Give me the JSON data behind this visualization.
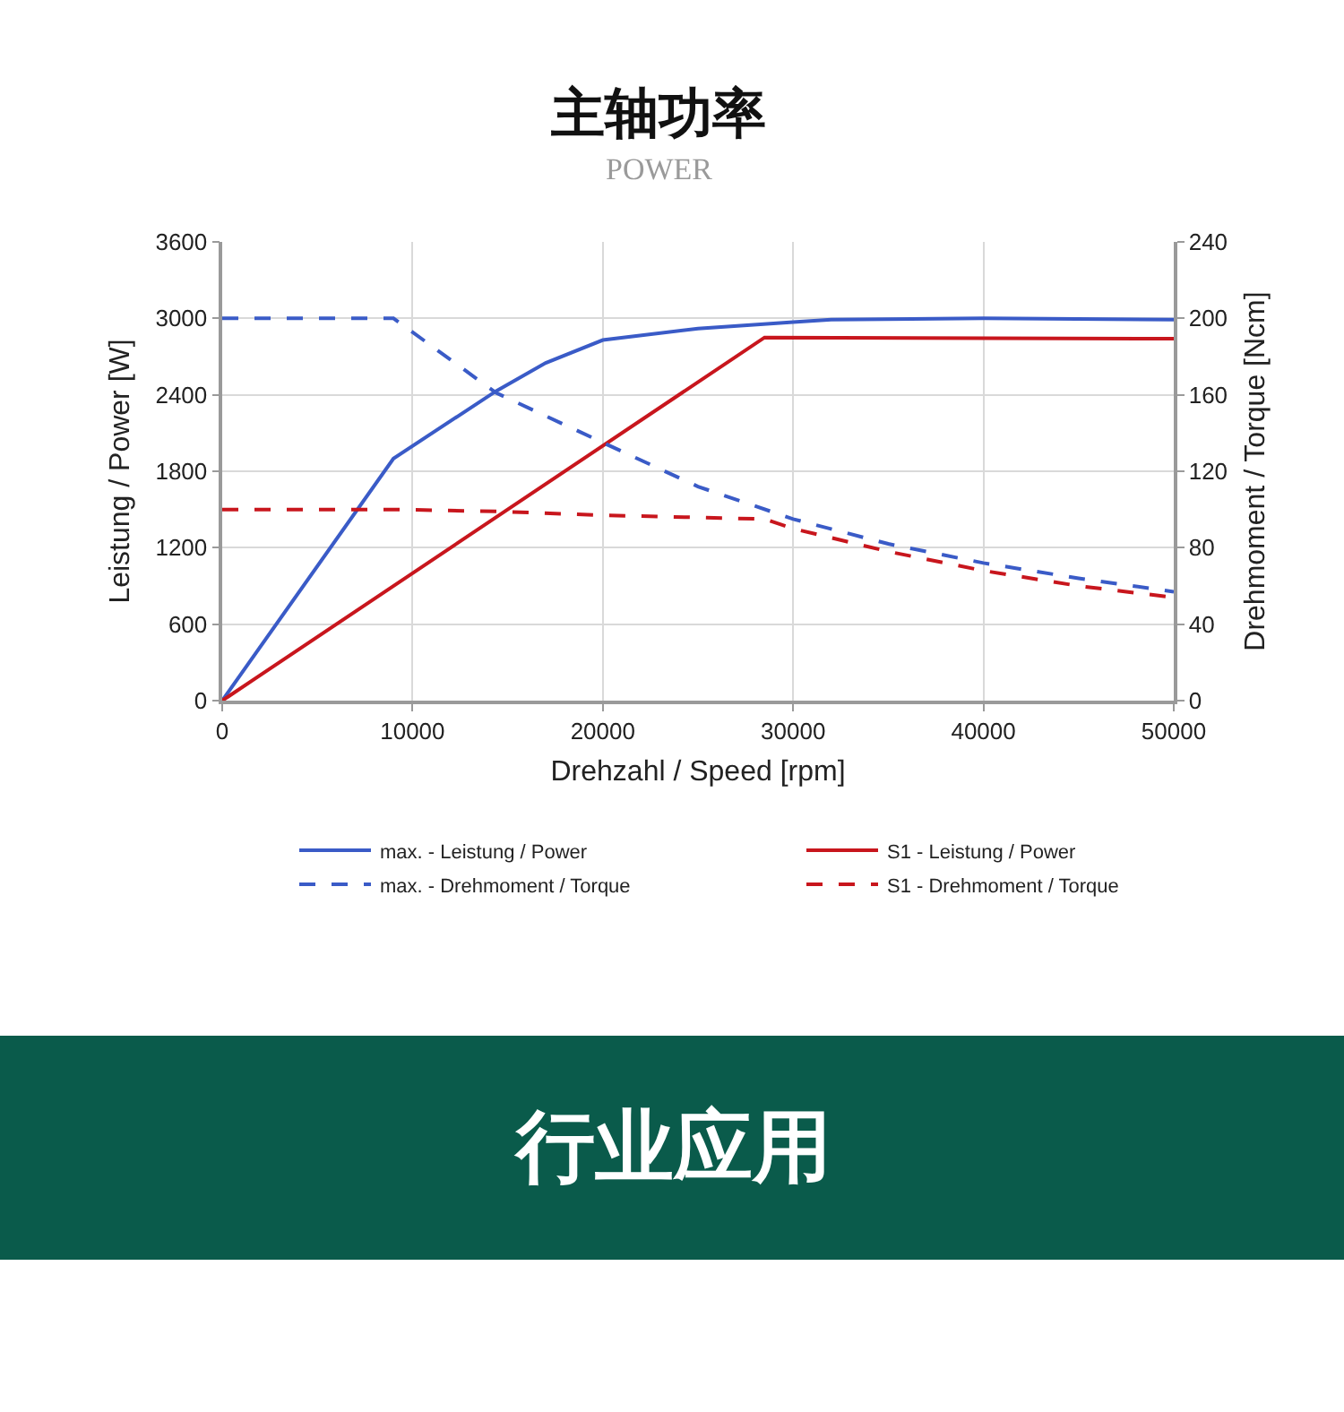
{
  "chart_data": {
    "type": "line",
    "title": "主轴功率",
    "subtitle": "POWER",
    "xlabel": "Drehzahl / Speed [rpm]",
    "ylabel": "Leistung / Power [W]",
    "y2label": "Drehmoment / Torque [Ncm]",
    "annotations": [
      "行业应用"
    ],
    "xlim": [
      0,
      50000
    ],
    "xticks": [
      0,
      10000,
      20000,
      30000,
      40000,
      50000
    ],
    "ylim": [
      0,
      3600
    ],
    "yticks": [
      0,
      600,
      1200,
      1800,
      2400,
      3000,
      3600
    ],
    "y2lim": [
      0,
      240
    ],
    "y2ticks": [
      0,
      40,
      80,
      120,
      160,
      200,
      240
    ],
    "grid": true,
    "legend": "bottom",
    "marker": "none",
    "series": [
      {
        "name": "max. - Leistung / Power",
        "color": "#3a5bc7",
        "line_style": "solid",
        "x": [
          0,
          9000,
          14400,
          17000,
          20000,
          25000,
          30000,
          32000,
          40000,
          50000
        ],
        "values": [
          0,
          1900,
          2430,
          2650,
          2830,
          2920,
          2970,
          2990,
          3000,
          2990
        ]
      },
      {
        "name": "S1 - Leistung / Power",
        "color": "#c8161d",
        "line_style": "solid",
        "x": [
          0,
          28500,
          50000
        ],
        "values": [
          0,
          2850,
          2840
        ]
      },
      {
        "name": "max. - Drehmoment / Torque",
        "color": "#3a5bc7",
        "line_style": "dashed",
        "axis": "y2",
        "x": [
          0,
          9000,
          14400,
          20000,
          25000,
          30000,
          35000,
          40000,
          45000,
          50000
        ],
        "values": [
          200,
          200,
          161,
          135,
          112,
          95,
          82,
          72,
          64,
          57
        ]
      },
      {
        "name": "S1 - Drehmoment / Torque",
        "color": "#c8161d",
        "line_style": "dashed",
        "axis": "y2",
        "x": [
          0,
          9000,
          14400,
          20000,
          28500,
          30000,
          35000,
          40000,
          45000,
          50000
        ],
        "values": [
          100,
          100,
          99,
          97,
          95,
          90,
          78,
          68,
          60,
          54
        ]
      }
    ]
  }
}
